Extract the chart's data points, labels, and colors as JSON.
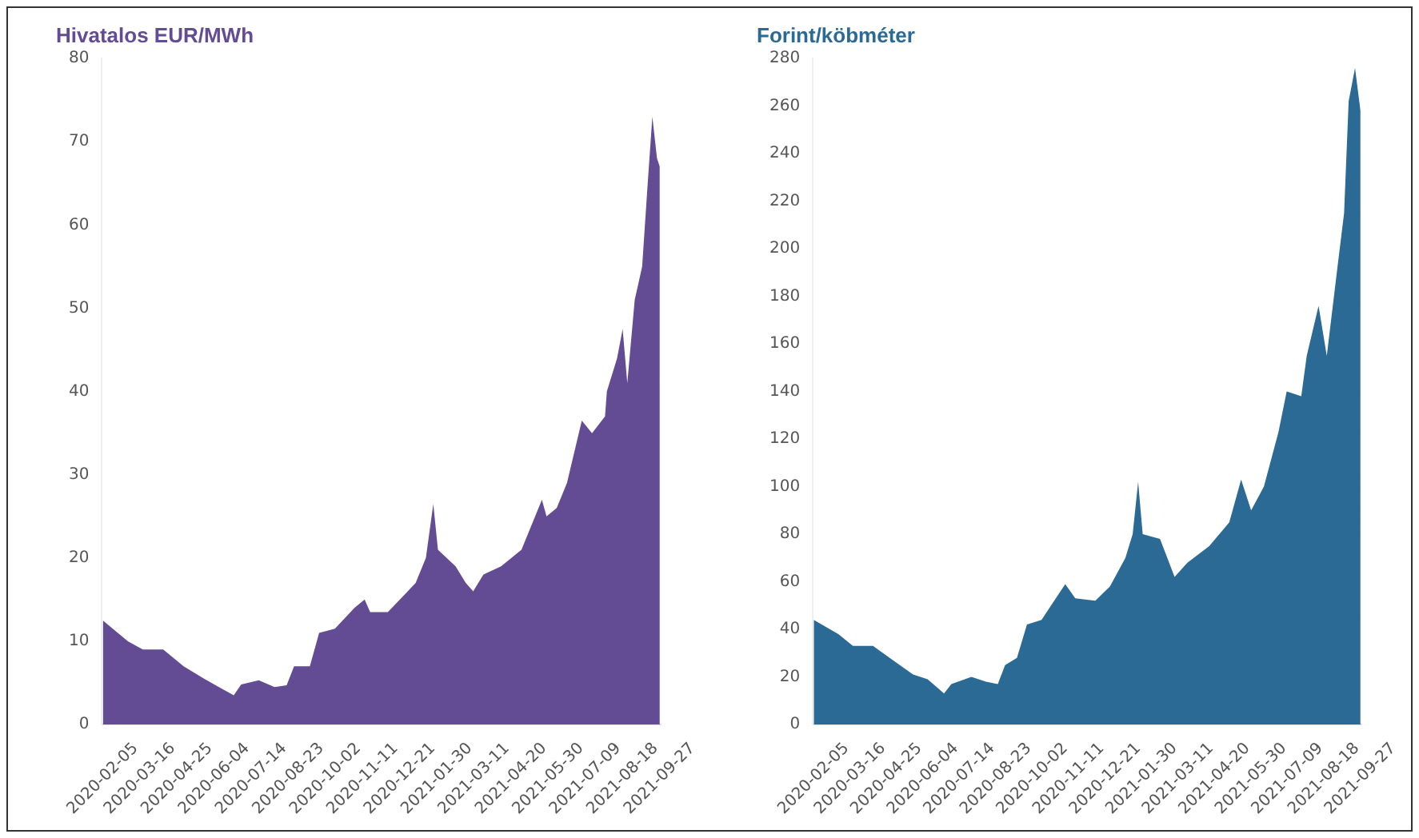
{
  "chart_data": [
    {
      "type": "area",
      "title": "Hivatalos EUR/MWh",
      "color": "#634c93",
      "x": [
        "2020-02-05",
        "2020-03-03",
        "2020-03-19",
        "2020-04-10",
        "2020-05-02",
        "2020-05-24",
        "2020-06-09",
        "2020-06-25",
        "2020-07-03",
        "2020-07-22",
        "2020-08-08",
        "2020-08-21",
        "2020-08-29",
        "2020-09-15",
        "2020-09-25",
        "2020-10-12",
        "2020-11-02",
        "2020-11-13",
        "2020-11-19",
        "2020-12-08",
        "2020-12-21",
        "2021-01-07",
        "2021-01-18",
        "2021-01-26",
        "2021-01-31",
        "2021-02-19",
        "2021-03-02",
        "2021-03-10",
        "2021-03-21",
        "2021-04-09",
        "2021-05-01",
        "2021-05-23",
        "2021-05-28",
        "2021-06-08",
        "2021-06-19",
        "2021-07-05",
        "2021-07-16",
        "2021-07-30",
        "2021-08-01",
        "2021-08-12",
        "2021-08-18",
        "2021-08-23",
        "2021-08-31",
        "2021-09-08",
        "2021-09-14",
        "2021-09-19",
        "2021-09-24",
        "2021-09-27"
      ],
      "values": [
        12.5,
        10,
        9,
        9,
        7,
        5.5,
        4.5,
        3.5,
        4.8,
        5.3,
        4.5,
        4.7,
        7,
        7,
        11,
        11.5,
        14,
        15,
        13.5,
        13.5,
        15,
        17,
        20,
        26.5,
        21,
        19,
        17,
        16,
        18,
        19,
        21,
        27,
        25,
        26,
        29,
        36.5,
        35,
        37,
        40,
        44,
        47.5,
        41,
        51,
        55,
        65,
        73,
        68,
        67
      ],
      "xlim": [
        "2020-02-04",
        "2021-09-28"
      ],
      "xticks": [
        "2020-02-05",
        "2020-03-16",
        "2020-04-25",
        "2020-06-04",
        "2020-07-14",
        "2020-08-23",
        "2020-10-02",
        "2020-11-11",
        "2020-12-21",
        "2021-01-30",
        "2021-03-11",
        "2021-04-20",
        "2021-05-30",
        "2021-07-09",
        "2021-08-18",
        "2021-09-27"
      ],
      "ylim": [
        0,
        80
      ],
      "yticks": [
        0,
        10,
        20,
        30,
        40,
        50,
        60,
        70,
        80
      ]
    },
    {
      "type": "area",
      "title": "Forint/köbméter",
      "color": "#2a6a94",
      "x": [
        "2020-02-05",
        "2020-03-03",
        "2020-03-19",
        "2020-04-10",
        "2020-05-02",
        "2020-05-24",
        "2020-06-09",
        "2020-06-27",
        "2020-07-05",
        "2020-07-27",
        "2020-08-12",
        "2020-08-25",
        "2020-09-02",
        "2020-09-15",
        "2020-09-26",
        "2020-10-12",
        "2020-11-07",
        "2020-11-18",
        "2020-12-10",
        "2020-12-26",
        "2021-01-12",
        "2021-01-20",
        "2021-01-26",
        "2021-01-31",
        "2021-02-19",
        "2021-03-07",
        "2021-03-21",
        "2021-04-14",
        "2021-05-06",
        "2021-05-19",
        "2021-05-30",
        "2021-06-13",
        "2021-06-29",
        "2021-07-08",
        "2021-07-24",
        "2021-07-30",
        "2021-08-12",
        "2021-08-21",
        "2021-09-01",
        "2021-09-09",
        "2021-09-14",
        "2021-09-21",
        "2021-09-27"
      ],
      "values": [
        44,
        38,
        33,
        33,
        27,
        21,
        19,
        13,
        17,
        20,
        18,
        17,
        25,
        28,
        42,
        44,
        59,
        53,
        52,
        58,
        70,
        80,
        102,
        80,
        78,
        62,
        68,
        75,
        85,
        103,
        90,
        100,
        123,
        140,
        138,
        155,
        176,
        155,
        190,
        215,
        262,
        276,
        258
      ],
      "xlim": [
        "2020-02-04",
        "2021-09-28"
      ],
      "xticks": [
        "2020-02-05",
        "2020-03-16",
        "2020-04-25",
        "2020-06-04",
        "2020-07-14",
        "2020-08-23",
        "2020-10-02",
        "2020-11-11",
        "2020-12-21",
        "2021-01-30",
        "2021-03-11",
        "2021-04-20",
        "2021-05-30",
        "2021-07-09",
        "2021-08-18",
        "2021-09-27"
      ],
      "ylim": [
        0,
        280
      ],
      "yticks": [
        0,
        20,
        40,
        60,
        80,
        100,
        120,
        140,
        160,
        180,
        200,
        220,
        240,
        260,
        280
      ]
    }
  ]
}
